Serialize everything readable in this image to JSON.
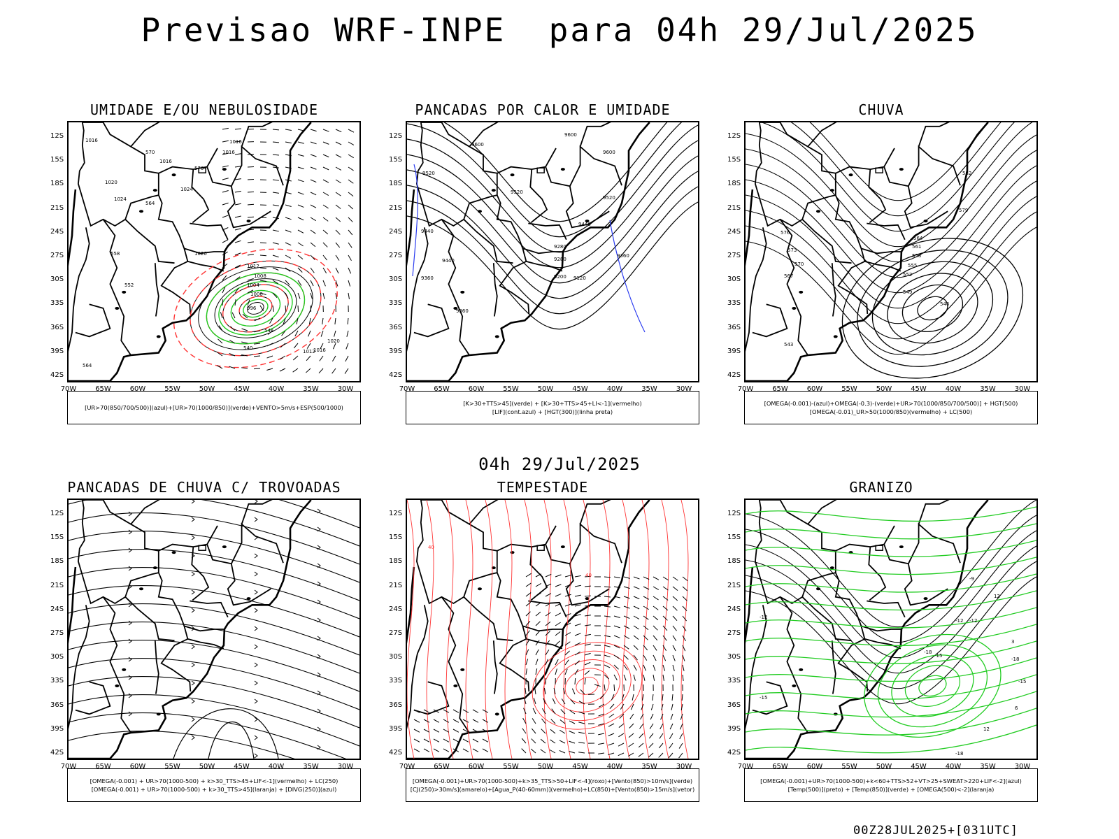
{
  "header": {
    "title": "Previsao WRF-INPE  para 04h 29/Jul/2025"
  },
  "mid_title": "04h 29/Jul/2025",
  "footer": "00Z28JUL2025+[031UTC]",
  "lat_labels": [
    "12S",
    "15S",
    "18S",
    "21S",
    "24S",
    "27S",
    "30S",
    "33S",
    "36S",
    "39S",
    "42S"
  ],
  "lon_labels": [
    "70W",
    "65W",
    "60W",
    "55W",
    "50W",
    "45W",
    "40W",
    "35W",
    "30W"
  ],
  "colors": {
    "blue": "#2b3cf0",
    "green": "#22cc22",
    "red": "#ff3333",
    "orange": "#ee8833",
    "yellow": "#e6dc32",
    "teal": "#1f4a4a",
    "lavender": "#b8b8f0"
  },
  "panels": [
    {
      "title": "UMIDADE E/OU NEBULOSIDADE",
      "legend": [
        "[UR>70(850/700/500)](azul)+[UR>70(1000/850)](verde)+VENTO>5m/s+ESP(500/1000)"
      ],
      "labels": [
        "1016",
        "1016",
        "1020",
        "1024",
        "1024",
        "1020",
        "1016",
        "1016",
        "1012",
        "1008",
        "1004",
        "1000",
        "996",
        "1020",
        "1016",
        "1012",
        "570",
        "570",
        "564",
        "558",
        "552",
        "546",
        "540",
        "564"
      ]
    },
    {
      "title": "PANCADAS POR CALOR E UMIDADE",
      "legend": [
        "[K>30+TTS>45](verde) + [K>30+TTS>45+LI<-1](vermelho)",
        "[LIF](cont.azul) + [HGT(300)](linha preta)"
      ],
      "labels": [
        "9600",
        "9600",
        "9600",
        "9520",
        "9520",
        "9520",
        "9440",
        "9440",
        "9440",
        "9360",
        "9360",
        "9360",
        "9280",
        "9280",
        "9200",
        "9120"
      ]
    },
    {
      "title": "CHUVA",
      "legend": [
        "[OMEGA(-0.001)-(azul)+OMEGA(-0.3)-(verde)+UR>70(1000/850/700/500)] + HGT(500)",
        "[OMEGA(-0.01)_UR>50(1000/850)(vermelho) + LC(500)"
      ],
      "labels": [
        "582",
        "579",
        "576",
        "573",
        "570",
        "567",
        "564",
        "561",
        "558",
        "555",
        "552",
        "549",
        "546",
        "543"
      ]
    },
    {
      "title": "PANCADAS DE CHUVA C/ TROVOADAS",
      "legend": [
        "[OMEGA(-0.001) + UR>70(1000-500) + k>30_TTS>45+LIF<-1](vermelho) + LC(250)",
        "[OMEGA(-0.001) + UR>70(1000-500) + k>30_TTS>45](laranja) + [DIVG(250)](azul)"
      ],
      "labels": []
    },
    {
      "title": "TEMPESTADE",
      "legend": [
        "[OMEGA(-0.001)+UR>70(1000-500)+k>35_TTS>50+LIF<-4](roxo)+[Vento(850)>10m/s](verde)",
        "[CJ(250)>30m/s](amarelo)+[Agua_P(40-60mm)](vermelho)+LC(850)+[Vento(850)>15m/s](vetor)"
      ],
      "labels": [
        "40",
        "40"
      ]
    },
    {
      "title": "GRANIZO",
      "legend": [
        "[OMEGA(-0.001)+UR>70(1000-500)+k<60+TTS>52+VT>25+SWEAT>220+LIF<-2](azul)",
        "[Temp(500)](preto) + [Temp(850)](verde) + [OMEGA(500)<-2](laranja)"
      ],
      "labels": [
        "-12",
        "-12",
        "-15",
        "-15",
        "-18",
        "-18",
        "-9",
        "-12",
        "-15",
        "-18",
        "12",
        "12",
        "3",
        "6"
      ]
    }
  ]
}
